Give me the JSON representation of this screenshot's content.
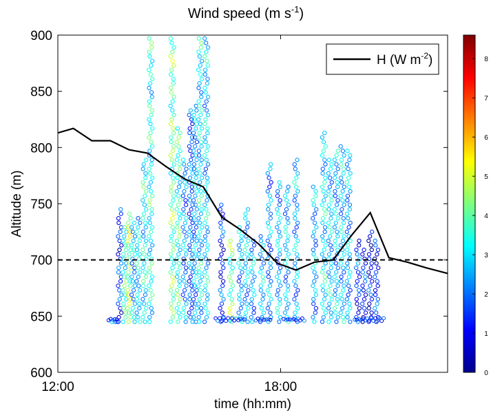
{
  "chart_data": {
    "type": "scatter",
    "title": "Wind speed (m s-1)",
    "title_text": "Wind speed (m s",
    "title_sup": "-1",
    "title_close": ")",
    "xlabel": "time (hh:mm)",
    "ylabel": "Altitude (m)",
    "xlim": [
      "12:00",
      "22:30"
    ],
    "ylim": [
      600,
      900
    ],
    "x_ticks": [
      "12:00",
      "18:00"
    ],
    "y_ticks": [
      600,
      650,
      700,
      750,
      800,
      850,
      900
    ],
    "grid": false,
    "legend_position": "top-right",
    "legend": {
      "label_text": "H (W m",
      "label_sup": "-2",
      "label_close": ")",
      "color": "#000000"
    },
    "reference_line": {
      "y": 700,
      "style": "dashed",
      "color": "#000000"
    },
    "series": [
      {
        "name": "H (W m-2)",
        "type": "line",
        "x": [
          "12:00",
          "12:25",
          "12:55",
          "13:25",
          "13:55",
          "14:25",
          "14:55",
          "15:25",
          "15:55",
          "16:25",
          "16:55",
          "17:25",
          "17:55",
          "18:25",
          "18:55",
          "19:25",
          "19:55",
          "20:25",
          "20:55",
          "21:25",
          "21:55",
          "22:30"
        ],
        "y": [
          813,
          817,
          806,
          806,
          798,
          795,
          783,
          772,
          765,
          738,
          727,
          714,
          697,
          691,
          698,
          700,
          722,
          742,
          702,
          698,
          693,
          688
        ]
      },
      {
        "name": "",
        "type": "scatter-profiles",
        "note": "vertical altitude profiles colored by wind speed",
        "profiles": [
          {
            "time": "13:25",
            "top": 648,
            "speed": 2.5
          },
          {
            "time": "13:30",
            "top": 648,
            "speed": 2.0
          },
          {
            "time": "13:35",
            "top": 648,
            "speed": 2.3
          },
          {
            "time": "13:40",
            "top": 745,
            "speed": 1.5
          },
          {
            "time": "13:48",
            "top": 730,
            "speed": 3.5
          },
          {
            "time": "13:55",
            "top": 742,
            "speed": 4.5
          },
          {
            "time": "14:02",
            "top": 735,
            "speed": 2.5
          },
          {
            "time": "14:10",
            "top": 740,
            "speed": 3.0
          },
          {
            "time": "14:20",
            "top": 790,
            "speed": 3.2
          },
          {
            "time": "14:30",
            "top": 900,
            "speed": 3.3
          },
          {
            "time": "15:05",
            "top": 900,
            "speed": 4.0
          },
          {
            "time": "15:15",
            "top": 820,
            "speed": 3.5
          },
          {
            "time": "15:25",
            "top": 790,
            "speed": 2.3
          },
          {
            "time": "15:35",
            "top": 833,
            "speed": 1.8
          },
          {
            "time": "15:42",
            "top": 838,
            "speed": 2.5
          },
          {
            "time": "15:50",
            "top": 900,
            "speed": 3.0
          },
          {
            "time": "16:00",
            "top": 900,
            "speed": 2.8
          },
          {
            "time": "16:25",
            "top": 752,
            "speed": 1.3
          },
          {
            "time": "16:40",
            "top": 720,
            "speed": 4.0
          },
          {
            "time": "16:55",
            "top": 730,
            "speed": 2.5
          },
          {
            "time": "17:05",
            "top": 745,
            "speed": 2.7
          },
          {
            "time": "17:15",
            "top": 720,
            "speed": 2.5
          },
          {
            "time": "17:30",
            "top": 722,
            "speed": 2.6
          },
          {
            "time": "17:42",
            "top": 785,
            "speed": 2.3
          },
          {
            "time": "17:57",
            "top": 770,
            "speed": 2.5
          },
          {
            "time": "18:10",
            "top": 765,
            "speed": 2.7
          },
          {
            "time": "18:25",
            "top": 790,
            "speed": 2.5
          },
          {
            "time": "18:55",
            "top": 765,
            "speed": 2.5
          },
          {
            "time": "19:10",
            "top": 815,
            "speed": 3.0
          },
          {
            "time": "19:20",
            "top": 790,
            "speed": 2.8
          },
          {
            "time": "19:30",
            "top": 800,
            "speed": 2.6
          },
          {
            "time": "19:40",
            "top": 803,
            "speed": 2.7
          },
          {
            "time": "19:50",
            "top": 800,
            "speed": 2.5
          },
          {
            "time": "20:05",
            "top": 720,
            "speed": 1.5
          },
          {
            "time": "20:15",
            "top": 712,
            "speed": 1.2
          },
          {
            "time": "20:25",
            "top": 725,
            "speed": 1.0
          },
          {
            "time": "20:35",
            "top": 718,
            "speed": 1.3
          }
        ]
      }
    ],
    "colorbar": {
      "colormap": "jet",
      "min": 0,
      "max": 8.6,
      "ticks": [
        0,
        1,
        2,
        3,
        4,
        5,
        6,
        7,
        8
      ]
    }
  }
}
